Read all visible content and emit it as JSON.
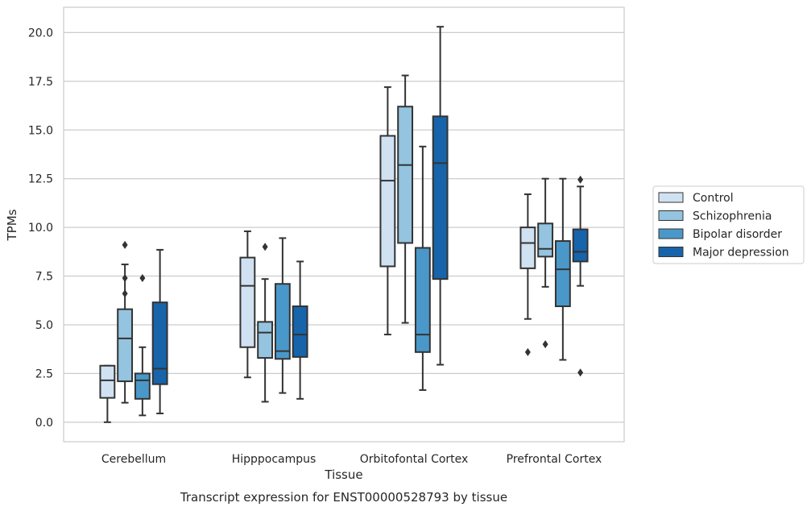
{
  "caption": "Transcript expression for ENST00000528793 by tissue",
  "chart_data": {
    "type": "box",
    "title": "",
    "xlabel": "Tissue",
    "ylabel": "TPMs",
    "ylim": [
      -1.0,
      21.3
    ],
    "yticks": [
      "0.0",
      "2.5",
      "5.0",
      "7.5",
      "10.0",
      "12.5",
      "15.0",
      "17.5",
      "20.0"
    ],
    "grid": "horizontal",
    "legend_position": "right",
    "categories": [
      "Cerebellum",
      "Hipppocampus",
      "Orbitofontal Cortex",
      "Prefrontal Cortex"
    ],
    "series": [
      {
        "name": "Control",
        "color": "#d0e1f2",
        "boxes": [
          {
            "whislo": 0.0,
            "q1": 1.25,
            "med": 2.15,
            "q3": 2.9,
            "whishi": 2.9,
            "fliers": []
          },
          {
            "whislo": 2.3,
            "q1": 3.85,
            "med": 7.0,
            "q3": 8.45,
            "whishi": 9.8,
            "fliers": []
          },
          {
            "whislo": 4.5,
            "q1": 8.0,
            "med": 12.4,
            "q3": 14.7,
            "whishi": 17.2,
            "fliers": []
          },
          {
            "whislo": 5.3,
            "q1": 7.9,
            "med": 9.2,
            "q3": 10.0,
            "whishi": 11.7,
            "fliers": [
              3.6
            ]
          }
        ]
      },
      {
        "name": "Schizophrenia",
        "color": "#94c4df",
        "boxes": [
          {
            "whislo": 1.0,
            "q1": 2.1,
            "med": 4.3,
            "q3": 5.8,
            "whishi": 8.1,
            "fliers": [
              9.1,
              7.4,
              6.6
            ]
          },
          {
            "whislo": 1.05,
            "q1": 3.3,
            "med": 4.6,
            "q3": 5.15,
            "whishi": 7.35,
            "fliers": [
              9.0
            ]
          },
          {
            "whislo": 5.1,
            "q1": 9.2,
            "med": 13.2,
            "q3": 16.2,
            "whishi": 17.8,
            "fliers": []
          },
          {
            "whislo": 6.95,
            "q1": 8.5,
            "med": 8.9,
            "q3": 10.2,
            "whishi": 12.5,
            "fliers": [
              4.0
            ]
          }
        ]
      },
      {
        "name": "Bipolar disorder",
        "color": "#4a98c9",
        "boxes": [
          {
            "whislo": 0.35,
            "q1": 1.2,
            "med": 2.15,
            "q3": 2.5,
            "whishi": 3.85,
            "fliers": [
              7.4
            ]
          },
          {
            "whislo": 1.5,
            "q1": 3.25,
            "med": 3.65,
            "q3": 7.1,
            "whishi": 9.45,
            "fliers": []
          },
          {
            "whislo": 1.65,
            "q1": 3.6,
            "med": 4.5,
            "q3": 8.95,
            "whishi": 14.15,
            "fliers": []
          },
          {
            "whislo": 3.2,
            "q1": 5.95,
            "med": 7.85,
            "q3": 9.3,
            "whishi": 12.5,
            "fliers": []
          }
        ]
      },
      {
        "name": "Major depression",
        "color": "#1764ab",
        "boxes": [
          {
            "whislo": 0.45,
            "q1": 1.95,
            "med": 2.75,
            "q3": 6.15,
            "whishi": 8.85,
            "fliers": []
          },
          {
            "whislo": 1.2,
            "q1": 3.35,
            "med": 4.5,
            "q3": 5.95,
            "whishi": 8.25,
            "fliers": []
          },
          {
            "whislo": 2.95,
            "q1": 7.35,
            "med": 13.3,
            "q3": 15.7,
            "whishi": 20.3,
            "fliers": []
          },
          {
            "whislo": 7.0,
            "q1": 8.25,
            "med": 8.75,
            "q3": 9.9,
            "whishi": 12.1,
            "fliers": [
              12.45,
              2.55
            ]
          }
        ]
      }
    ]
  }
}
